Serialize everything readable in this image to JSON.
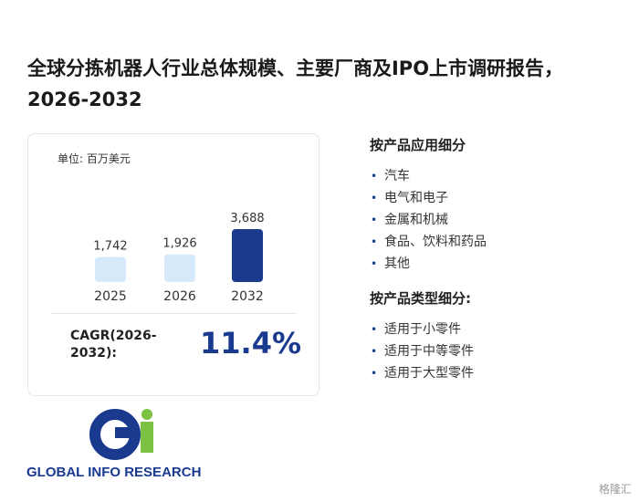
{
  "title": "全球分拣机器人行业总体规模、主要厂商及IPO上市调研报告，2026-2032",
  "unit_label": "单位: 百万美元",
  "chart_data": {
    "type": "bar",
    "title": "",
    "xlabel": "",
    "ylabel": "",
    "categories": [
      "2025",
      "2026",
      "2032"
    ],
    "values": [
      1742,
      1926,
      3688
    ],
    "value_labels": [
      "1,742",
      "1,926",
      "3,688"
    ],
    "ylim": [
      0,
      3688
    ],
    "grid": false,
    "colors": [
      "#d6e9fb",
      "#d6e9fb",
      "#1a3a8f"
    ]
  },
  "cagr": {
    "label": "CAGR(2026-2032):",
    "value": "11.4%"
  },
  "segments": [
    {
      "heading": "按产品应用细分",
      "items": [
        "汽车",
        "电气和电子",
        "金属和机械",
        "食品、饮料和药品",
        "其他"
      ]
    },
    {
      "heading": "按产品类型细分:",
      "items": [
        "适用于小零件",
        "适用于中等零件",
        "适用于大型零件"
      ]
    }
  ],
  "logo": {
    "text": "GLOBAL INFO RESEARCH",
    "mark": "Gi",
    "colors": {
      "blue": "#1a3a8f",
      "green": "#7cc242"
    }
  },
  "corner_watermark": "格隆汇",
  "accent_color": "#1a3a8f"
}
